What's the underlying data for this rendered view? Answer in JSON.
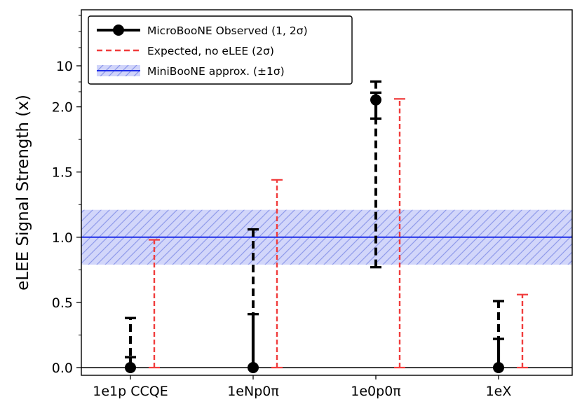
{
  "chart_data": {
    "type": "errorbar",
    "ylabel": "eLEE Signal Strength (x)",
    "yticks": [
      {
        "label": "0.0",
        "value": 0.0
      },
      {
        "label": "0.5",
        "value": 0.5
      },
      {
        "label": "1.0",
        "value": 1.0
      },
      {
        "label": "1.5",
        "value": 1.5
      },
      {
        "label": "2.0",
        "value": 2.0
      },
      {
        "label": "10",
        "value": 10
      }
    ],
    "categories": [
      "1e1p CCQE",
      "1eNp0π",
      "1e0p0π",
      "1eX"
    ],
    "series": [
      {
        "name": "MicroBooNE Observed (1, 2σ)",
        "color": "#000000",
        "points": [
          {
            "category": "1e1p CCQE",
            "y": 0.0,
            "one_sigma": [
              0.0,
              0.08
            ],
            "two_sigma": [
              0.0,
              0.38
            ]
          },
          {
            "category": "1eNp0π",
            "y": 0.0,
            "one_sigma": [
              0.0,
              0.41
            ],
            "two_sigma": [
              0.0,
              1.06
            ]
          },
          {
            "category": "1e0p0π",
            "y": 2.15,
            "one_sigma": [
              1.91,
              2.3
            ],
            "two_sigma": [
              0.77,
              2.53
            ]
          },
          {
            "category": "1eX",
            "y": 0.0,
            "one_sigma": [
              0.0,
              0.22
            ],
            "two_sigma": [
              0.0,
              0.51
            ]
          }
        ]
      },
      {
        "name": "Expected, no eLEE (2σ)",
        "color": "#f03c3c",
        "points": [
          {
            "category": "1e1p CCQE",
            "upper": 0.98
          },
          {
            "category": "1eNp0π",
            "upper": 1.44
          },
          {
            "category": "1e0p0π",
            "upper": 2.17
          },
          {
            "category": "1eX",
            "upper": 0.56
          }
        ]
      },
      {
        "name": "MiniBooNE approx. (±1σ)",
        "color": "#4a5ef0",
        "central": 1.0,
        "band": [
          0.79,
          1.21
        ]
      }
    ],
    "legend_position": "upper-left"
  }
}
